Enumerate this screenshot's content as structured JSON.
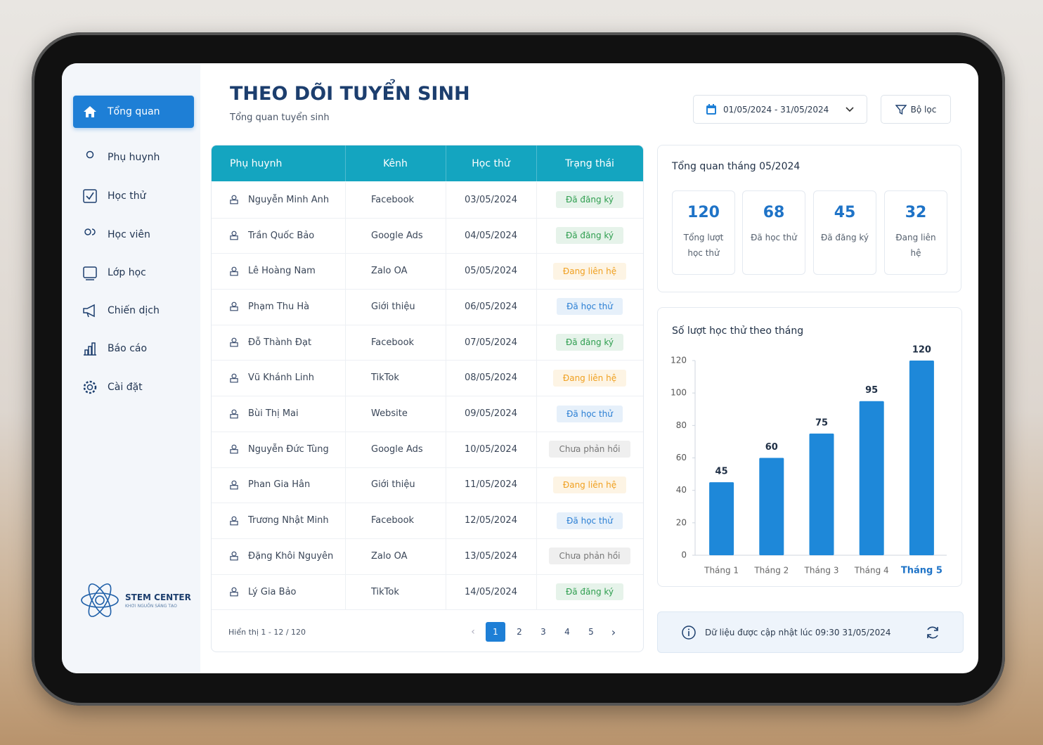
{
  "sidebar": {
    "nav": [
      "Tổng quan",
      "Phụ huynh",
      "Học thử",
      "Học viên",
      "Lớp học",
      "Chiến dịch",
      "Báo cáo",
      "Cài đặt"
    ],
    "logo": {
      "name": "STEM CENTER",
      "tagline": "KHƠI NGUỒN SÁNG TẠO"
    }
  },
  "header": {
    "title": "THEO DÕI TUYỂN SINH",
    "subtitle": "Tổng quan tuyển sinh",
    "date_range": "01/05/2024 - 31/05/2024",
    "filter": "Bộ lọc"
  },
  "table": {
    "columns": [
      "Phụ huynh",
      "Kênh",
      "Học thử",
      "Trạng thái"
    ],
    "rows": [
      {
        "parent": "Nguyễn Minh Anh",
        "channel": "Facebook",
        "date": "03/05/2024",
        "status": "Đã đăng ký",
        "status_color": "#2e9e4f"
      },
      {
        "parent": "Trần Quốc Bảo",
        "channel": "Google Ads",
        "date": "04/05/2024",
        "status": "Đã đăng ký",
        "status_color": "#2e9e4f"
      },
      {
        "parent": "Lê Hoàng Nam",
        "channel": "Zalo OA",
        "date": "05/05/2024",
        "status": "Đang liên hệ",
        "status_color": "#f0a020"
      },
      {
        "parent": "Phạm Thu Hà",
        "channel": "Giới thiệu",
        "date": "06/05/2024",
        "status": "Đã học thử",
        "status_color": "#2b7fd4"
      },
      {
        "parent": "Đỗ Thành Đạt",
        "channel": "Facebook",
        "date": "07/05/2024",
        "status": "Đã đăng ký",
        "status_color": "#2e9e4f"
      },
      {
        "parent": "Vũ Khánh Linh",
        "channel": "TikTok",
        "date": "08/05/2024",
        "status": "Đang liên hệ",
        "status_color": "#f0a020"
      },
      {
        "parent": "Bùi Thị Mai",
        "channel": "Website",
        "date": "09/05/2024",
        "status": "Đã học thử",
        "status_color": "#2b7fd4"
      },
      {
        "parent": "Nguyễn Đức Tùng",
        "channel": "Google Ads",
        "date": "10/05/2024",
        "status": "Chưa phản hồi",
        "status_color": "#777777"
      },
      {
        "parent": "Phan Gia Hân",
        "channel": "Giới thiệu",
        "date": "11/05/2024",
        "status": "Đang liên hệ",
        "status_color": "#f0a020"
      },
      {
        "parent": "Trương Nhật Minh",
        "channel": "Facebook",
        "date": "12/05/2024",
        "status": "Đã học thử",
        "status_color": "#2b7fd4"
      },
      {
        "parent": "Đặng Khôi Nguyên",
        "channel": "Zalo OA",
        "date": "13/05/2024",
        "status": "Chưa phản hồi",
        "status_color": "#777777"
      },
      {
        "parent": "Lý Gia Bảo",
        "channel": "TikTok",
        "date": "14/05/2024",
        "status": "Đã đăng ký",
        "status_color": "#2e9e4f"
      }
    ],
    "footer": "Hiển thị 1 - 12 / 120",
    "pages": [
      1,
      2,
      3,
      4,
      5
    ]
  },
  "summary": {
    "title": "Tổng quan tháng 05/2024",
    "stats": [
      {
        "value": 120,
        "label": "Tổng lượt học thử"
      },
      {
        "value": 68,
        "label": "Đã học thử"
      },
      {
        "value": 45,
        "label": "Đã đăng ký"
      },
      {
        "value": 32,
        "label": "Đang liên hệ"
      }
    ]
  },
  "chart_data": {
    "type": "bar",
    "title": "Số lượt học thử theo tháng",
    "categories": [
      "Tháng 1",
      "Tháng 2",
      "Tháng 3",
      "Tháng 4",
      "Tháng 5"
    ],
    "values": [
      45,
      60,
      75,
      95,
      120
    ],
    "color": "#1e88d9",
    "ylim": [
      0,
      120
    ],
    "yticks": [
      0,
      20,
      40,
      60,
      80,
      100,
      120
    ],
    "grid": false
  },
  "info": "Dữ liệu được cập nhật lúc 09:30 31/05/2024"
}
